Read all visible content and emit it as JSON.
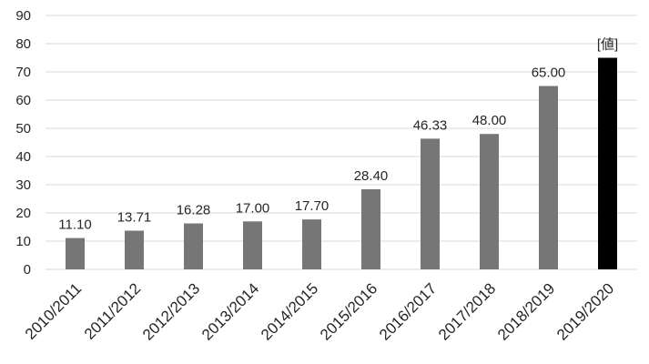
{
  "chart_data": {
    "type": "bar",
    "title": "",
    "xlabel": "",
    "ylabel": "",
    "categories": [
      "2010/2011",
      "2011/2012",
      "2012/2013",
      "2013/2014",
      "2014/2015",
      "2015/2016",
      "2016/2017",
      "2017/2018",
      "2018/2019",
      "2019/2020"
    ],
    "values": [
      11.1,
      13.71,
      16.28,
      17.0,
      17.7,
      28.4,
      46.33,
      48.0,
      65.0,
      75
    ],
    "data_labels": [
      "11.10",
      "13.71",
      "16.28",
      "17.00",
      "17.70",
      "28.40",
      "46.33",
      "48.00",
      "65.00",
      "[値]"
    ],
    "ylim": [
      0,
      90
    ],
    "yticks": [
      "0",
      "10",
      "20",
      "30",
      "40",
      "50",
      "60",
      "70",
      "80",
      "90"
    ],
    "grid": true,
    "legend": "none",
    "bar_color": "#767676",
    "highlight_bar_color": "#000000",
    "highlight_index": 9
  }
}
